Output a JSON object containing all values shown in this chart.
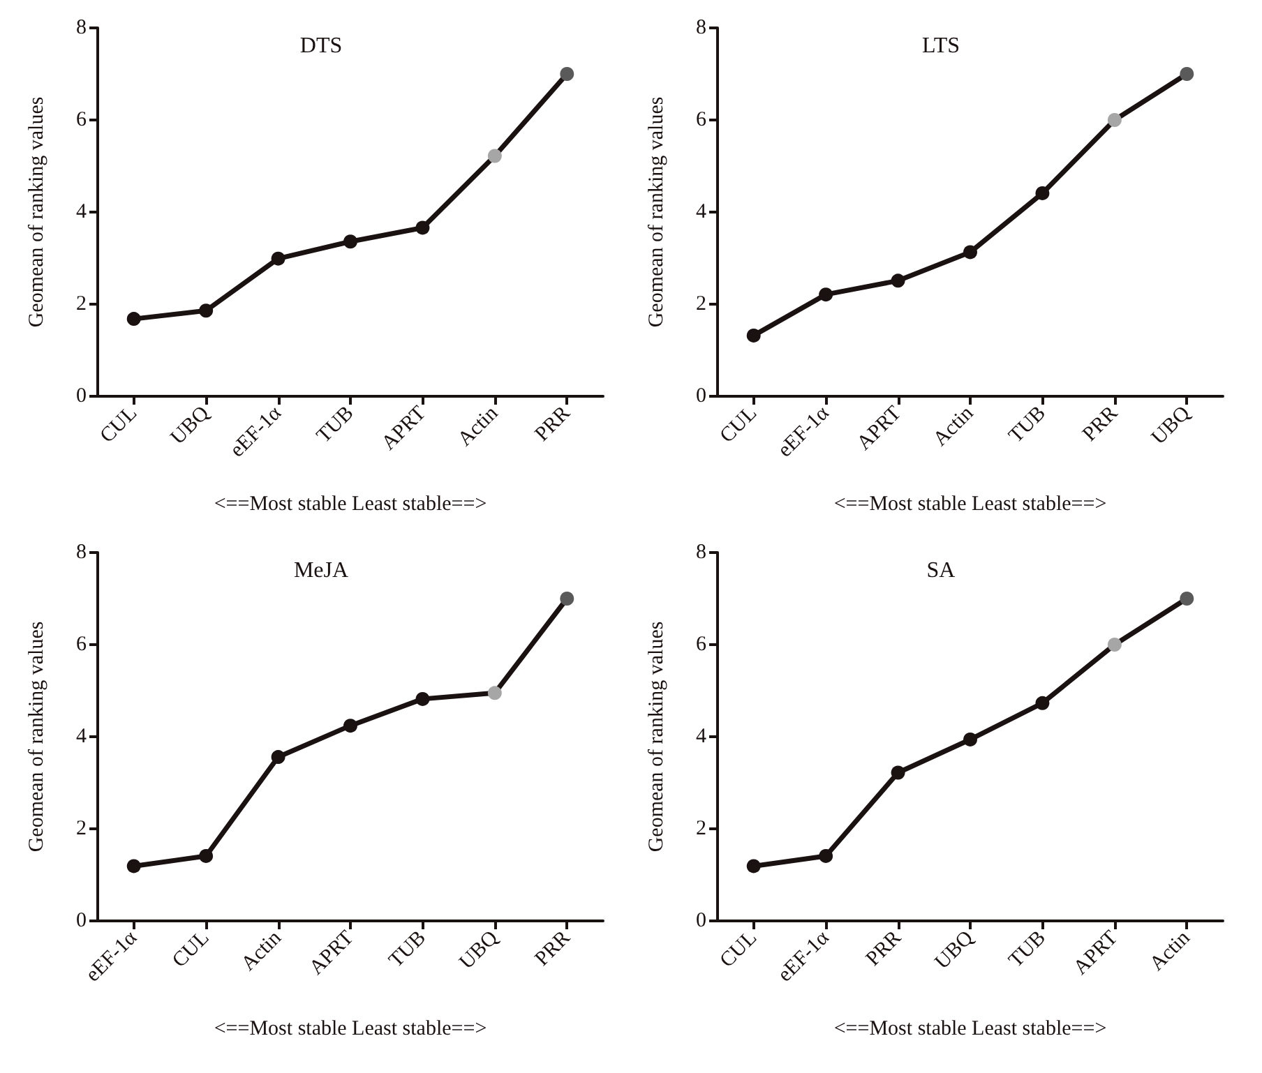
{
  "chart_data": [
    {
      "type": "line",
      "title": "DTS",
      "xlabel": "<==Most stable Least stable==>",
      "ylabel": "Geomean of ranking values",
      "categories": [
        "CUL",
        "UBQ",
        "eEF-1α",
        "TUB",
        "APRT",
        "Actin",
        "PRR"
      ],
      "series": [
        {
          "color": "#1a1111",
          "values": [
            1.68,
            1.86,
            2.99,
            3.36,
            3.66,
            5.22,
            7
          ],
          "colors": [
            "#1a1111",
            "#1a1111",
            "#1a1111",
            "#1a1111",
            "#1a1111",
            "#a6a6a6",
            "#5a5a5a"
          ]
        }
      ],
      "ylim": [
        0,
        8
      ],
      "yticks": [
        0,
        2,
        4,
        6,
        8
      ],
      "marker": "circle",
      "line_style": "solid"
    },
    {
      "type": "line",
      "title": "LTS",
      "xlabel": "<==Most stable Least stable==>",
      "ylabel": "Geomean of ranking values",
      "categories": [
        "CUL",
        "eEF-1α",
        "APRT",
        "Actin",
        "TUB",
        "PRR",
        "UBQ"
      ],
      "series": [
        {
          "color": "#1a1111",
          "values": [
            1.32,
            2.21,
            2.51,
            3.13,
            4.41,
            6,
            7
          ],
          "colors": [
            "#1a1111",
            "#1a1111",
            "#1a1111",
            "#1a1111",
            "#1a1111",
            "#a6a6a6",
            "#5a5a5a"
          ]
        }
      ],
      "ylim": [
        0,
        8
      ],
      "yticks": [
        0,
        2,
        4,
        6,
        8
      ],
      "marker": "circle",
      "line_style": "solid"
    },
    {
      "type": "line",
      "title": "MeJA",
      "xlabel": "<==Most stable Least stable==>",
      "ylabel": "Geomean of ranking values",
      "categories": [
        "eEF-1α",
        "CUL",
        "Actin",
        "APRT",
        "TUB",
        "UBQ",
        "PRR"
      ],
      "series": [
        {
          "color": "#1a1111",
          "values": [
            1.19,
            1.41,
            3.56,
            4.24,
            4.82,
            4.95,
            7
          ],
          "colors": [
            "#1a1111",
            "#1a1111",
            "#1a1111",
            "#1a1111",
            "#1a1111",
            "#a6a6a6",
            "#5a5a5a"
          ]
        }
      ],
      "ylim": [
        0,
        8
      ],
      "yticks": [
        0,
        2,
        4,
        6,
        8
      ],
      "marker": "circle",
      "line_style": "solid"
    },
    {
      "type": "line",
      "title": "SA",
      "xlabel": "<==Most stable Least stable==>",
      "ylabel": "Geomean of ranking values",
      "categories": [
        "CUL",
        "eEF-1α",
        "PRR",
        "UBQ",
        "TUB",
        "APRT",
        "Actin"
      ],
      "series": [
        {
          "color": "#1a1111",
          "values": [
            1.19,
            1.41,
            3.22,
            3.94,
            4.73,
            6,
            7
          ],
          "colors": [
            "#1a1111",
            "#1a1111",
            "#1a1111",
            "#1a1111",
            "#1a1111",
            "#a6a6a6",
            "#5a5a5a"
          ]
        }
      ],
      "ylim": [
        0,
        8
      ],
      "yticks": [
        0,
        2,
        4,
        6,
        8
      ],
      "marker": "circle",
      "line_style": "solid"
    }
  ]
}
